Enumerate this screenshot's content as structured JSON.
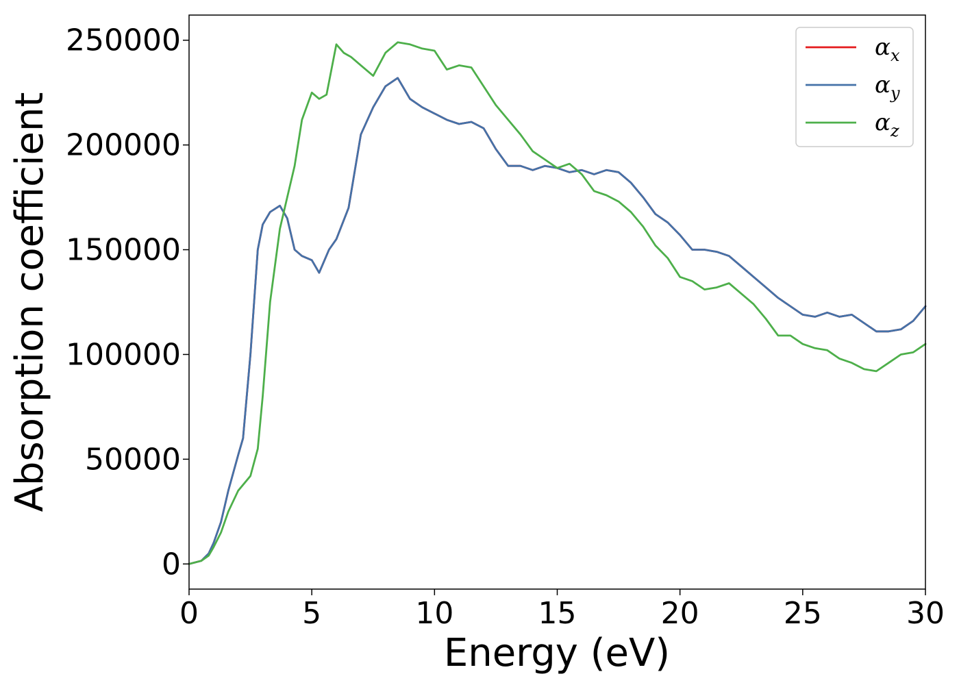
{
  "chart_data": {
    "type": "line",
    "title": "",
    "xlabel": "Energy (eV)",
    "ylabel": "Absorption coefficient",
    "xlim": [
      0,
      30
    ],
    "ylim": [
      -12000,
      262000
    ],
    "xticks": [
      0,
      5,
      10,
      15,
      20,
      25,
      30
    ],
    "xtick_labels": [
      "0",
      "5",
      "10",
      "15",
      "20",
      "25",
      "30"
    ],
    "yticks": [
      0,
      50000,
      100000,
      150000,
      200000,
      250000
    ],
    "ytick_labels": [
      "0",
      "50000",
      "100000",
      "150000",
      "200000",
      "250000"
    ],
    "grid": false,
    "legend_position": "top-right",
    "series": [
      {
        "name": "α_x",
        "label_base": "α",
        "label_sub": "x",
        "color": "#e41a1c",
        "x": [
          0,
          0.5,
          0.8,
          1.0,
          1.3,
          1.6,
          2.0,
          2.2,
          2.5,
          2.8,
          3.0,
          3.3,
          3.7,
          4.0,
          4.3,
          4.6,
          5.0,
          5.3,
          5.7,
          6.0,
          6.5,
          7.0,
          7.5,
          8.0,
          8.5,
          9.0,
          9.5,
          10.0,
          10.5,
          11.0,
          11.5,
          12.0,
          12.5,
          13.0,
          13.5,
          14.0,
          14.5,
          15.0,
          15.5,
          16.0,
          16.5,
          17.0,
          17.5,
          18.0,
          18.5,
          19.0,
          19.5,
          20.0,
          20.5,
          21.0,
          21.5,
          22.0,
          22.5,
          23.0,
          23.5,
          24.0,
          24.5,
          25.0,
          25.5,
          26.0,
          26.5,
          27.0,
          27.5,
          28.0,
          28.5,
          29.0,
          29.5,
          30.0
        ],
        "y": [
          0,
          1500,
          5000,
          10000,
          20000,
          35000,
          52000,
          60000,
          100000,
          150000,
          162000,
          168000,
          171000,
          165000,
          150000,
          147000,
          145000,
          139000,
          150000,
          155000,
          170000,
          205000,
          218000,
          228000,
          232000,
          222000,
          218000,
          215000,
          212000,
          210000,
          211000,
          208000,
          198000,
          190000,
          190000,
          188000,
          190000,
          189000,
          187000,
          188000,
          186000,
          188000,
          187000,
          182000,
          175000,
          167000,
          163000,
          157000,
          150000,
          150000,
          149000,
          147000,
          142000,
          137000,
          132000,
          127000,
          123000,
          119000,
          118000,
          120000,
          118000,
          119000,
          115000,
          111000,
          111000,
          112000,
          116000,
          123000
        ]
      },
      {
        "name": "α_y",
        "label_base": "α",
        "label_sub": "y",
        "color": "#4472a8",
        "x": [
          0,
          0.5,
          0.8,
          1.0,
          1.3,
          1.6,
          2.0,
          2.2,
          2.5,
          2.8,
          3.0,
          3.3,
          3.7,
          4.0,
          4.3,
          4.6,
          5.0,
          5.3,
          5.7,
          6.0,
          6.5,
          7.0,
          7.5,
          8.0,
          8.5,
          9.0,
          9.5,
          10.0,
          10.5,
          11.0,
          11.5,
          12.0,
          12.5,
          13.0,
          13.5,
          14.0,
          14.5,
          15.0,
          15.5,
          16.0,
          16.5,
          17.0,
          17.5,
          18.0,
          18.5,
          19.0,
          19.5,
          20.0,
          20.5,
          21.0,
          21.5,
          22.0,
          22.5,
          23.0,
          23.5,
          24.0,
          24.5,
          25.0,
          25.5,
          26.0,
          26.5,
          27.0,
          27.5,
          28.0,
          28.5,
          29.0,
          29.5,
          30.0
        ],
        "y": [
          0,
          1500,
          5000,
          10000,
          20000,
          35000,
          52000,
          60000,
          100000,
          150000,
          162000,
          168000,
          171000,
          165000,
          150000,
          147000,
          145000,
          139000,
          150000,
          155000,
          170000,
          205000,
          218000,
          228000,
          232000,
          222000,
          218000,
          215000,
          212000,
          210000,
          211000,
          208000,
          198000,
          190000,
          190000,
          188000,
          190000,
          189000,
          187000,
          188000,
          186000,
          188000,
          187000,
          182000,
          175000,
          167000,
          163000,
          157000,
          150000,
          150000,
          149000,
          147000,
          142000,
          137000,
          132000,
          127000,
          123000,
          119000,
          118000,
          120000,
          118000,
          119000,
          115000,
          111000,
          111000,
          112000,
          116000,
          123000
        ]
      },
      {
        "name": "α_z",
        "label_base": "α",
        "label_sub": "z",
        "color": "#4daf4a",
        "x": [
          0,
          0.5,
          0.8,
          1.0,
          1.3,
          1.6,
          2.0,
          2.5,
          2.8,
          3.0,
          3.3,
          3.7,
          4.0,
          4.3,
          4.6,
          5.0,
          5.3,
          5.6,
          6.0,
          6.3,
          6.6,
          7.0,
          7.5,
          8.0,
          8.5,
          9.0,
          9.5,
          10.0,
          10.5,
          11.0,
          11.5,
          12.0,
          12.5,
          13.0,
          13.5,
          14.0,
          14.5,
          15.0,
          15.5,
          16.0,
          16.5,
          17.0,
          17.5,
          18.0,
          18.5,
          19.0,
          19.5,
          20.0,
          20.5,
          21.0,
          21.5,
          22.0,
          22.5,
          23.0,
          23.5,
          24.0,
          24.5,
          25.0,
          25.5,
          26.0,
          26.5,
          27.0,
          27.5,
          28.0,
          28.5,
          29.0,
          29.5,
          30.0
        ],
        "y": [
          0,
          1500,
          4000,
          8000,
          15000,
          25000,
          35000,
          42000,
          55000,
          80000,
          125000,
          160000,
          175000,
          190000,
          212000,
          225000,
          222000,
          224000,
          248000,
          244000,
          242000,
          238000,
          233000,
          244000,
          249000,
          248000,
          246000,
          245000,
          236000,
          238000,
          237000,
          228000,
          219000,
          212000,
          205000,
          197000,
          193000,
          189000,
          191000,
          186000,
          178000,
          176000,
          173000,
          168000,
          161000,
          152000,
          146000,
          137000,
          135000,
          131000,
          132000,
          134000,
          129000,
          124000,
          117000,
          109000,
          109000,
          105000,
          103000,
          102000,
          98000,
          96000,
          93000,
          92000,
          96000,
          100000,
          101000,
          105000
        ]
      }
    ]
  }
}
